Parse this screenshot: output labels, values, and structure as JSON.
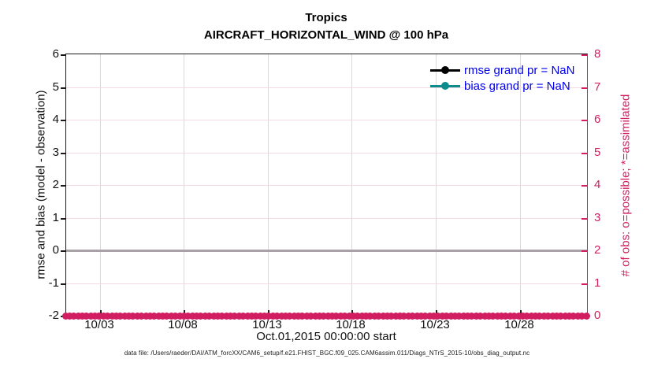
{
  "title": {
    "line1": "Tropics",
    "line2": "AIRCRAFT_HORIZONTAL_WIND @ 100 hPa"
  },
  "colors": {
    "accent": "#d01e60",
    "grid_pink": "#f4dae4",
    "grid_gray": "#d9d9d9",
    "zero_line": "#a8a2a6",
    "legend_text_blue": "#0000ee",
    "rmse_black": "#000000",
    "bias_teal": "#0e8b8b"
  },
  "left_axis": {
    "label": "rmse and bias (model - observation)",
    "ticks": [
      6,
      5,
      4,
      3,
      2,
      1,
      0,
      -1,
      -2
    ]
  },
  "right_axis": {
    "label": "# of obs: o=possible; *=assimilated",
    "ticks": [
      8,
      7,
      6,
      5,
      4,
      3,
      2,
      1,
      0
    ]
  },
  "x_axis": {
    "label": "Oct.01,2015 00:00:00 start",
    "span_days": 31,
    "ticks": [
      {
        "label": "10/03",
        "day": 3
      },
      {
        "label": "10/08",
        "day": 8
      },
      {
        "label": "10/13",
        "day": 13
      },
      {
        "label": "10/18",
        "day": 18
      },
      {
        "label": "10/23",
        "day": 23
      },
      {
        "label": "10/28",
        "day": 28
      }
    ]
  },
  "legend": [
    {
      "label": "rmse grand pr = NaN",
      "color": "#000000"
    },
    {
      "label": "bias grand pr = NaN",
      "color": "#0e8b8b"
    }
  ],
  "footer": "data file: /Users/raeder/DAI/ATM_forcXX/CAM6_setup/f.e21.FHIST_BGC.f09_025.CAM6assim.011/Diags_NTrS_2015-10/obs_diag_output.nc",
  "chart_data": {
    "type": "line",
    "title": "Tropics",
    "subtitle": "AIRCRAFT_HORIZONTAL_WIND @ 100 hPa",
    "xlabel": "Oct.01,2015 00:00:00 start",
    "x_range": {
      "start": "2015-10-01 00:00",
      "end": "2015-11-01 00:00",
      "span_days": 31
    },
    "x_tick_labels": [
      "10/03",
      "10/08",
      "10/13",
      "10/18",
      "10/23",
      "10/28"
    ],
    "left_axis": {
      "ylabel": "rmse and bias (model - observation)",
      "ylim": [
        -2,
        6
      ],
      "tick_step": 1
    },
    "right_axis": {
      "ylabel": "# of obs: o=possible; *=assimilated",
      "ylim": [
        0,
        8
      ],
      "tick_step": 1
    },
    "grid": "on",
    "legend_position": "top-right-inside",
    "series": [
      {
        "name": "rmse grand pr = NaN",
        "axis": "left",
        "color": "#000000",
        "marker": "circle-line",
        "values": "NaN (no curve plotted)"
      },
      {
        "name": "bias grand pr = NaN",
        "axis": "left",
        "color": "#0e8b8b",
        "marker": "circle-line",
        "values": "NaN (no curve plotted)"
      },
      {
        "name": "obs assimilated",
        "axis": "right",
        "marker": "*",
        "color": "#d01e60",
        "constant_value": 0,
        "marker_count": 124
      }
    ],
    "reference_line": {
      "axis": "left",
      "y": 0,
      "color": "#a8a2a6"
    }
  }
}
